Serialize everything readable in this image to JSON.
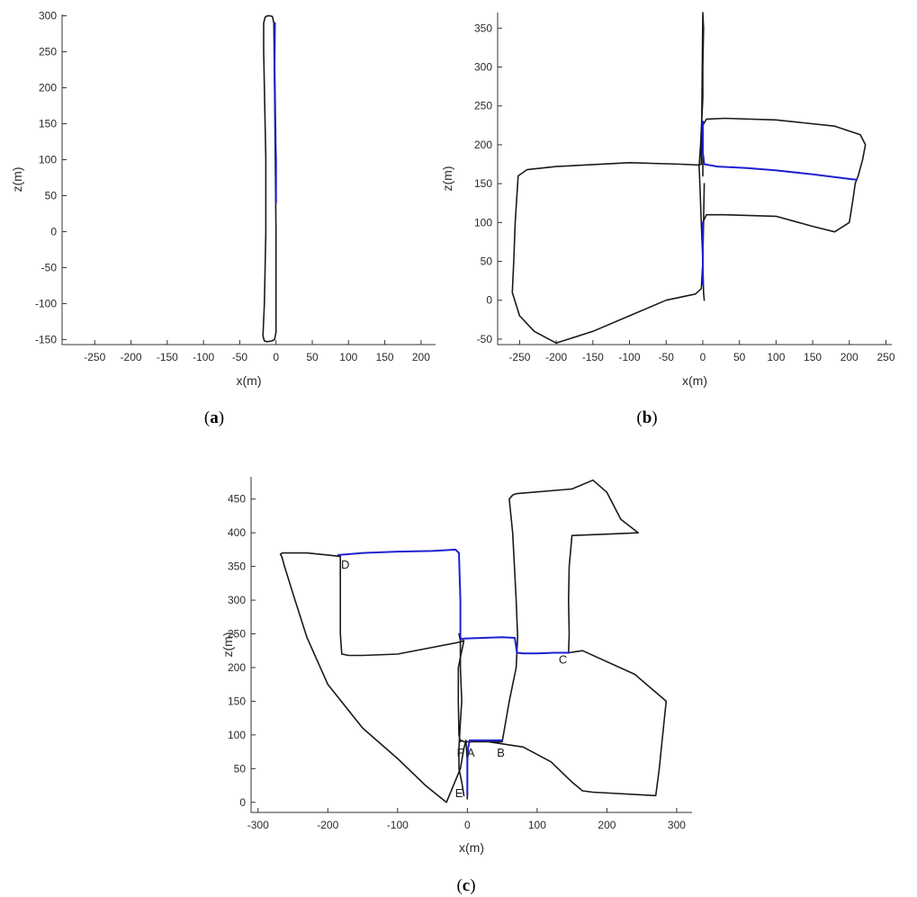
{
  "colors": {
    "trajectory": "#1a1a1a",
    "loop_closure": "#1f1fd0",
    "axis": "#333333"
  },
  "chart_data": [
    {
      "type": "line",
      "caption_letter": "a",
      "xlabel": "x(m)",
      "ylabel": "z(m)",
      "xlim": [
        -295,
        220
      ],
      "ylim": [
        -157,
        302
      ],
      "xticks": [
        -250,
        -200,
        -150,
        -100,
        -50,
        0,
        50,
        100,
        150,
        200
      ],
      "yticks": [
        -150,
        -100,
        -50,
        0,
        50,
        100,
        150,
        200,
        250,
        300
      ],
      "series": [
        {
          "role": "trajectory",
          "closed": true,
          "x": [
            -2,
            0,
            0,
            -0.5,
            -1,
            -2,
            -3,
            -5,
            -8,
            -12,
            -15,
            -17,
            -17,
            -16,
            -15,
            -14,
            -14,
            -14,
            -16,
            -18,
            -16,
            -12,
            -6,
            -2
          ],
          "y": [
            -150,
            -140,
            0,
            50,
            100,
            200,
            290,
            299,
            300,
            300,
            298,
            290,
            250,
            200,
            150,
            100,
            50,
            0,
            -100,
            -145,
            -152,
            -153,
            -152,
            -150
          ]
        },
        {
          "role": "loop_closure",
          "closed": false,
          "x": [
            0,
            0,
            0,
            -0.5,
            -1,
            -2,
            -1.5
          ],
          "y": [
            40,
            60,
            100,
            120,
            160,
            230,
            290
          ]
        }
      ]
    },
    {
      "type": "line",
      "caption_letter": "b",
      "xlabel": "x(m)",
      "ylabel": "z(m)",
      "xlim": [
        -280,
        258
      ],
      "ylim": [
        -57,
        370
      ],
      "xticks": [
        -250,
        -200,
        -150,
        -100,
        -50,
        0,
        50,
        100,
        150,
        200,
        250
      ],
      "yticks": [
        -50,
        0,
        50,
        100,
        150,
        200,
        250,
        300,
        350
      ],
      "series": [
        {
          "role": "trajectory",
          "closed": false,
          "x": [
            2,
            1,
            0,
            -2,
            -4,
            -5,
            -3,
            0,
            0,
            1,
            0,
            -2,
            -5,
            -30,
            -100,
            -200,
            -240,
            -252,
            -256,
            -258,
            -260,
            -250,
            -230,
            -200,
            -150,
            -100,
            -50,
            -10,
            -2,
            0,
            1,
            2
          ],
          "y": [
            0,
            10,
            50,
            100,
            150,
            172,
            200,
            260,
            300,
            350,
            370,
            175,
            174,
            175,
            177,
            172,
            168,
            160,
            100,
            50,
            10,
            -20,
            -40,
            -55,
            -40,
            -20,
            0,
            8,
            15,
            50,
            100,
            150
          ]
        },
        {
          "role": "trajectory",
          "closed": false,
          "x": [
            0,
            0,
            5,
            30,
            100,
            180,
            215,
            222,
            218,
            212,
            208,
            205,
            200,
            180,
            150,
            100,
            30,
            5,
            0
          ],
          "y": [
            160,
            225,
            233,
            234,
            232,
            224,
            213,
            200,
            180,
            160,
            150,
            130,
            100,
            88,
            95,
            108,
            110,
            110,
            100
          ]
        },
        {
          "role": "loop_closure",
          "closed": false,
          "x": [
            0,
            0,
            2,
            20,
            60,
            100,
            150,
            200,
            210
          ],
          "y": [
            230,
            190,
            175,
            172,
            170,
            167,
            162,
            156,
            155
          ]
        },
        {
          "role": "loop_closure",
          "closed": false,
          "x": [
            0,
            0,
            0
          ],
          "y": [
            100,
            60,
            20
          ]
        }
      ]
    },
    {
      "type": "line",
      "caption_letter": "c",
      "xlabel": "x(m)",
      "ylabel": "z(m)",
      "xlim": [
        -310,
        322
      ],
      "ylim": [
        -15,
        483
      ],
      "xticks": [
        -300,
        -200,
        -100,
        0,
        100,
        200,
        300
      ],
      "yticks": [
        0,
        50,
        100,
        150,
        200,
        250,
        300,
        350,
        400,
        450
      ],
      "annotations": [
        {
          "text": "A",
          "x": 5,
          "y": 68
        },
        {
          "text": "B",
          "x": 48,
          "y": 68
        },
        {
          "text": "C",
          "x": 137,
          "y": 206
        },
        {
          "text": "D",
          "x": -175,
          "y": 347
        },
        {
          "text": "E",
          "x": -12,
          "y": 8
        },
        {
          "text": "F",
          "x": -10,
          "y": 68
        }
      ],
      "series": [
        {
          "role": "trajectory",
          "closed": false,
          "x": [
            0,
            0,
            -2,
            -5,
            -10,
            -30,
            -60,
            -100,
            -150,
            -200,
            -230,
            -250,
            -262,
            -266,
            -268,
            -265,
            -260,
            -250,
            -230,
            -200,
            -182,
            -182,
            -182,
            -180,
            -170,
            -150,
            -100,
            -10,
            -5,
            -13,
            -13,
            -12,
            -10,
            -8,
            -5,
            0,
            20,
            50,
            60,
            70,
            72,
            70,
            65,
            60,
            65,
            70,
            150,
            180,
            200,
            220,
            245,
            200,
            150,
            146,
            145,
            146,
            145,
            165,
            240,
            285,
            280,
            275,
            270,
            180,
            165,
            150,
            120,
            80,
            30,
            2
          ],
          "y": [
            5,
            60,
            92,
            80,
            50,
            0,
            25,
            65,
            110,
            175,
            245,
            310,
            350,
            365,
            368,
            370,
            370,
            370,
            370,
            367,
            365,
            300,
            250,
            220,
            218,
            218,
            220,
            238,
            240,
            200,
            150,
            100,
            90,
            92,
            90,
            90,
            90,
            90,
            150,
            200,
            245,
            300,
            400,
            450,
            456,
            458,
            465,
            478,
            460,
            420,
            400,
            398,
            396,
            350,
            300,
            250,
            222,
            225,
            190,
            150,
            100,
            50,
            10,
            15,
            17,
            30,
            60,
            82,
            90,
            90
          ]
        },
        {
          "role": "trajectory",
          "closed": false,
          "x": [
            -5,
            -8,
            -12,
            -12,
            -10,
            -8,
            -10,
            -10,
            -12
          ],
          "y": [
            10,
            30,
            50,
            80,
            120,
            150,
            200,
            240,
            250
          ]
        },
        {
          "role": "loop_closure",
          "closed": false,
          "x": [
            -185,
            -150,
            -100,
            -50,
            -17,
            -12,
            -10,
            -10,
            -10,
            -8,
            -5,
            50,
            68,
            70,
            71,
            80,
            100,
            125,
            146
          ],
          "y": [
            367,
            370,
            372,
            373,
            375,
            370,
            300,
            250,
            245,
            242,
            243,
            245,
            244,
            230,
            222,
            221,
            221,
            222,
            222
          ]
        },
        {
          "role": "loop_closure",
          "closed": false,
          "x": [
            0,
            0,
            0,
            1,
            3
          ],
          "y": [
            10,
            40,
            60,
            80,
            90
          ]
        },
        {
          "role": "loop_closure",
          "closed": false,
          "x": [
            3,
            15,
            30,
            50
          ],
          "y": [
            92,
            92,
            92,
            92
          ]
        }
      ]
    }
  ]
}
